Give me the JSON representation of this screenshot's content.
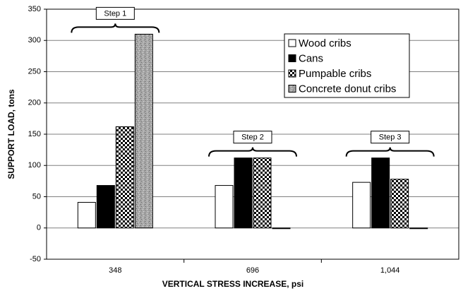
{
  "chart_data": {
    "type": "bar",
    "x_label": "VERTICAL STRESS INCREASE, psi",
    "y_label": "SUPPORT LOAD, tons",
    "categories": [
      "348",
      "696",
      "1,044"
    ],
    "series": [
      {
        "name": "Wood cribs",
        "color": "#ffffff",
        "values": [
          41,
          68,
          73
        ]
      },
      {
        "name": "Cans",
        "color": "#000000",
        "values": [
          68,
          112,
          112
        ]
      },
      {
        "name": "Pumpable cribs",
        "color": "#ffffff",
        "pattern": "checker",
        "values": [
          162,
          112,
          78
        ]
      },
      {
        "name": "Concrete donut cribs",
        "color": "#a8a8a8",
        "pattern": "speckle",
        "values": [
          310,
          0,
          0
        ]
      }
    ],
    "annotations": [
      "Step 1",
      "Step 2",
      "Step 3"
    ],
    "ylim": [
      -50,
      350
    ],
    "yticks": [
      -50,
      0,
      50,
      100,
      150,
      200,
      250,
      300,
      350
    ],
    "grid": true,
    "legend": "upper right"
  }
}
